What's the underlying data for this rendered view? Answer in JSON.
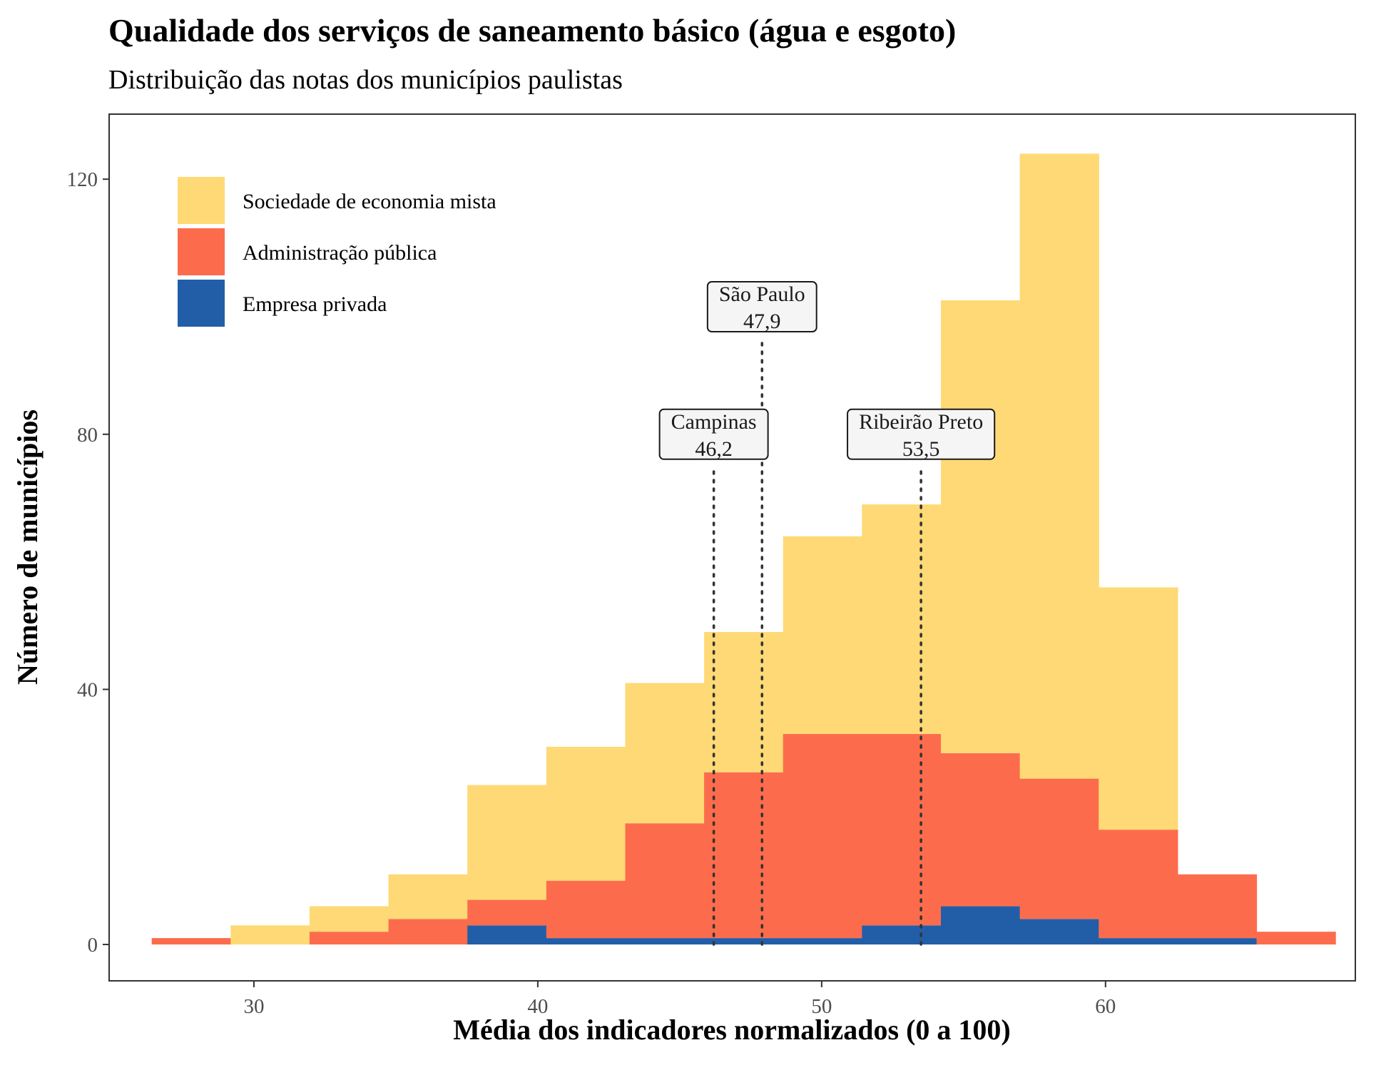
{
  "chart_data": {
    "type": "bar",
    "stacked": true,
    "title": "Qualidade dos serviços de saneamento básico (água e esgoto)",
    "subtitle": "Distribuição das notas dos municípios paulistas",
    "xlabel": "Média dos indicadores normalizados (0 a 100)",
    "ylabel": "Número de municípios",
    "xlim": [
      24.9,
      68.8
    ],
    "ylim": [
      -5.7,
      130.2
    ],
    "xticks": [
      30,
      40,
      50,
      60
    ],
    "yticks": [
      0,
      40,
      80,
      120
    ],
    "bin_width": 2.78,
    "bin_starts": [
      26.4,
      29.18,
      31.96,
      34.74,
      37.52,
      40.3,
      43.08,
      45.86,
      48.64,
      51.42,
      54.2,
      56.98,
      59.76,
      62.54,
      65.32
    ],
    "legend_position": "top-left",
    "grid": false,
    "series": [
      {
        "name": "Empresa privada",
        "color": "#225ea8",
        "values": [
          0,
          0,
          0,
          0,
          3,
          1,
          1,
          1,
          1,
          3,
          6,
          4,
          1,
          1,
          0
        ]
      },
      {
        "name": "Administração pública",
        "color": "#fc6c4c",
        "values": [
          1,
          0,
          2,
          4,
          4,
          9,
          18,
          26,
          32,
          30,
          24,
          22,
          17,
          10,
          2
        ]
      },
      {
        "name": "Sociedade de economia mista",
        "color": "#fed976",
        "values": [
          0,
          3,
          4,
          7,
          18,
          21,
          22,
          22,
          31,
          36,
          71,
          98,
          38,
          0,
          0
        ]
      }
    ],
    "legend_order": [
      "Sociedade de economia mista",
      "Administração pública",
      "Empresa privada"
    ],
    "annotations": [
      {
        "city": "Campinas",
        "value_label": "46,2",
        "x": 46.2,
        "label_y": 80
      },
      {
        "city": "São Paulo",
        "value_label": "47,9",
        "x": 47.9,
        "label_y": 100
      },
      {
        "city": "Ribeirão Preto",
        "value_label": "53,5",
        "x": 53.5,
        "label_y": 80
      }
    ],
    "annotation_line_color": "#333333"
  }
}
